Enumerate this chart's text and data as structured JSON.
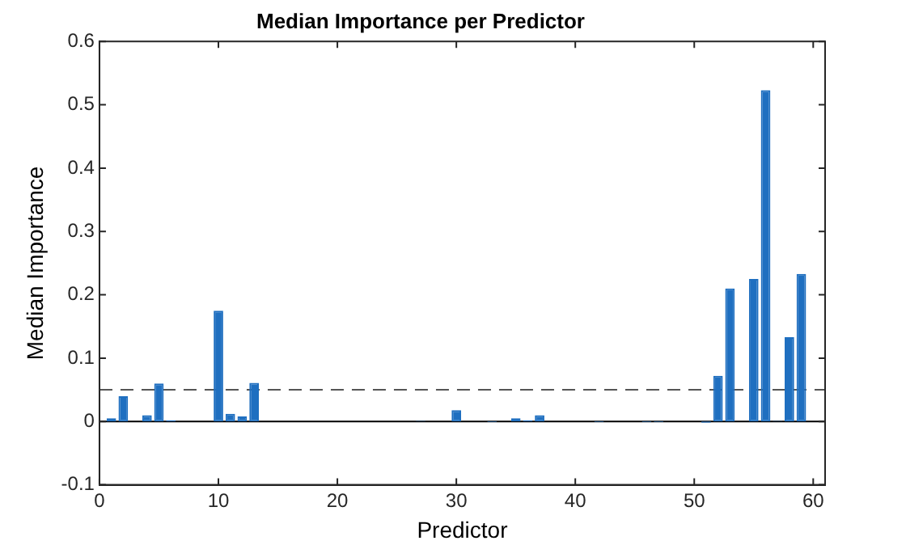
{
  "chart_data": {
    "type": "bar",
    "title": "Median Importance per Predictor",
    "xlabel": "Predictor",
    "ylabel": "Median Importance",
    "x": [
      1,
      2,
      3,
      4,
      5,
      6,
      7,
      8,
      9,
      10,
      11,
      12,
      13,
      14,
      15,
      16,
      17,
      18,
      19,
      20,
      21,
      22,
      23,
      24,
      25,
      26,
      27,
      28,
      29,
      30,
      31,
      32,
      33,
      34,
      35,
      36,
      37,
      38,
      39,
      40,
      41,
      42,
      43,
      44,
      45,
      46,
      47,
      48,
      49,
      50,
      51,
      52,
      53,
      54,
      55,
      56,
      57,
      58,
      59
    ],
    "values": [
      0.005,
      0.04,
      0,
      0.01,
      0.06,
      0.002,
      0,
      0,
      0,
      0.175,
      0.012,
      0.008,
      0.061,
      0,
      0,
      0,
      0,
      0,
      0,
      0,
      0,
      0,
      0,
      0,
      0,
      0,
      0.001,
      0,
      0,
      0.018,
      0,
      0,
      -0.001,
      0,
      0.005,
      0.002,
      0.01,
      0,
      0,
      0,
      0,
      -0.001,
      0,
      0,
      0,
      -0.001,
      -0.001,
      0,
      0,
      0,
      -0.002,
      0.072,
      0.21,
      0,
      0.225,
      0.523,
      0.001,
      0.133,
      0.233
    ],
    "color": "#1f6fc0",
    "xlim": [
      0,
      61
    ],
    "xticks": [
      0,
      10,
      20,
      30,
      40,
      50,
      60
    ],
    "ylim": [
      -0.1,
      0.6
    ],
    "yticks": [
      -0.1,
      0,
      0.1,
      0.2,
      0.3,
      0.4,
      0.5,
      0.6
    ],
    "ref_lines": [
      {
        "axis": "y",
        "value": 0,
        "color": "#000000",
        "line_style": "solid"
      },
      {
        "axis": "y",
        "value": 0.05,
        "color": "#555555",
        "line_style": "dashed"
      }
    ],
    "grid": false,
    "legend": false
  }
}
